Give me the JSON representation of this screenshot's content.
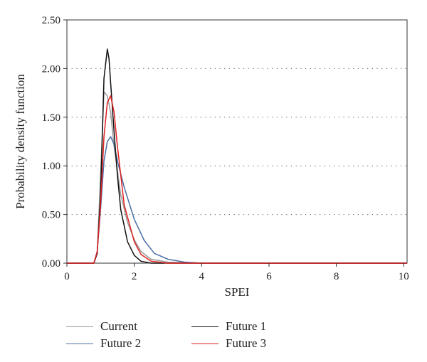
{
  "chart_data": {
    "type": "line",
    "title": "",
    "xlabel": "SPEI",
    "ylabel": "Probability density function",
    "xlim": [
      0,
      10.1
    ],
    "ylim": [
      0,
      2.5
    ],
    "x_ticks": [
      "0",
      "2",
      "4",
      "6",
      "8",
      "10"
    ],
    "y_ticks": [
      "0.00",
      "0.50",
      "1.00",
      "1.50",
      "2.00",
      "2.50"
    ],
    "grid": "horizontal dotted",
    "legend_position": "bottom",
    "series": [
      {
        "name": "Current",
        "color": "#999999",
        "x": [
          0,
          0.8,
          0.9,
          1.0,
          1.1,
          1.2,
          1.3,
          1.4,
          1.6,
          1.8,
          2.0,
          2.2,
          2.5,
          3.0,
          4.0,
          10.1
        ],
        "y": [
          0,
          0,
          0.1,
          0.9,
          1.76,
          1.72,
          1.55,
          1.2,
          0.7,
          0.42,
          0.24,
          0.12,
          0.04,
          0.01,
          0,
          0
        ]
      },
      {
        "name": "Future 1",
        "color": "#111111",
        "x": [
          0,
          0.8,
          0.9,
          1.0,
          1.1,
          1.2,
          1.25,
          1.3,
          1.4,
          1.5,
          1.6,
          1.8,
          2.0,
          2.2,
          2.5,
          4.0,
          10.1
        ],
        "y": [
          0,
          0,
          0.1,
          0.7,
          1.9,
          2.2,
          2.1,
          1.85,
          1.35,
          0.9,
          0.55,
          0.22,
          0.08,
          0.02,
          0,
          0,
          0
        ]
      },
      {
        "name": "Future 2",
        "color": "#4a6fa5",
        "x": [
          0,
          0.8,
          0.9,
          1.0,
          1.1,
          1.2,
          1.3,
          1.4,
          1.5,
          1.7,
          2.0,
          2.3,
          2.6,
          3.0,
          3.5,
          4.0,
          10.1
        ],
        "y": [
          0,
          0,
          0.12,
          0.55,
          1.05,
          1.25,
          1.3,
          1.22,
          1.05,
          0.78,
          0.45,
          0.23,
          0.1,
          0.04,
          0.01,
          0,
          0
        ]
      },
      {
        "name": "Future 3",
        "color": "#e02020",
        "x": [
          0,
          0.8,
          0.9,
          1.0,
          1.1,
          1.2,
          1.3,
          1.4,
          1.5,
          1.7,
          2.0,
          2.2,
          2.5,
          3.0,
          4.0,
          10.1
        ],
        "y": [
          0,
          0,
          0.12,
          0.6,
          1.3,
          1.65,
          1.72,
          1.55,
          1.2,
          0.6,
          0.22,
          0.09,
          0.02,
          0,
          0,
          0
        ]
      }
    ]
  }
}
